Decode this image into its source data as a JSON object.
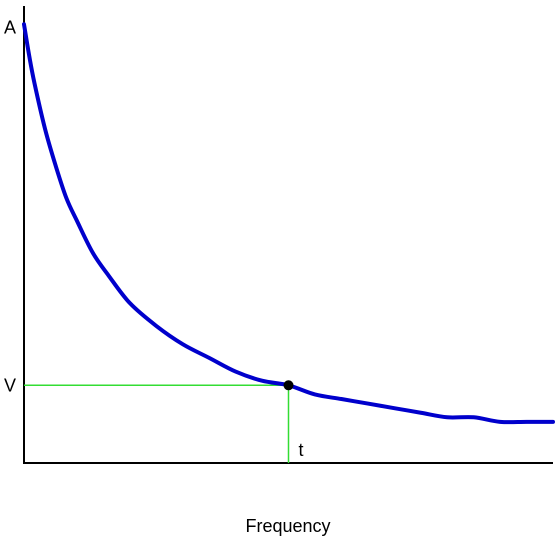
{
  "chart_data": {
    "type": "line",
    "title": "",
    "xlabel": "Frequency",
    "ylabel": "",
    "x_tick_labels": [
      "t"
    ],
    "y_tick_labels": [
      "A",
      "V"
    ],
    "xlim": [
      0,
      1
    ],
    "ylim": [
      0,
      1
    ],
    "grid": false,
    "series": [
      {
        "values_x": [
          0,
          0.01,
          0.02,
          0.04,
          0.06,
          0.08,
          0.1,
          0.13,
          0.16,
          0.2,
          0.25,
          0.3,
          0.35,
          0.4,
          0.45,
          0.5,
          0.55,
          0.6,
          0.65,
          0.7,
          0.75,
          0.8,
          0.85,
          0.9,
          0.95,
          1.0
        ],
        "values_y": [
          0.96,
          0.89,
          0.83,
          0.73,
          0.65,
          0.58,
          0.53,
          0.46,
          0.41,
          0.35,
          0.3,
          0.26,
          0.23,
          0.2,
          0.18,
          0.17,
          0.15,
          0.14,
          0.13,
          0.12,
          0.11,
          0.1,
          0.1,
          0.09,
          0.09,
          0.09
        ],
        "color": "#0000cc"
      }
    ],
    "highlight_point": {
      "x": 0.5,
      "y": 0.17,
      "x_label": "t",
      "y_label": "V",
      "guide_color": "#33dd33"
    },
    "y_top_marker": {
      "y": 0.96,
      "label": "A"
    },
    "colors": {
      "curve": "#0000cc",
      "guides": "#33dd33",
      "axes": "#000000",
      "point": "#000000"
    }
  }
}
